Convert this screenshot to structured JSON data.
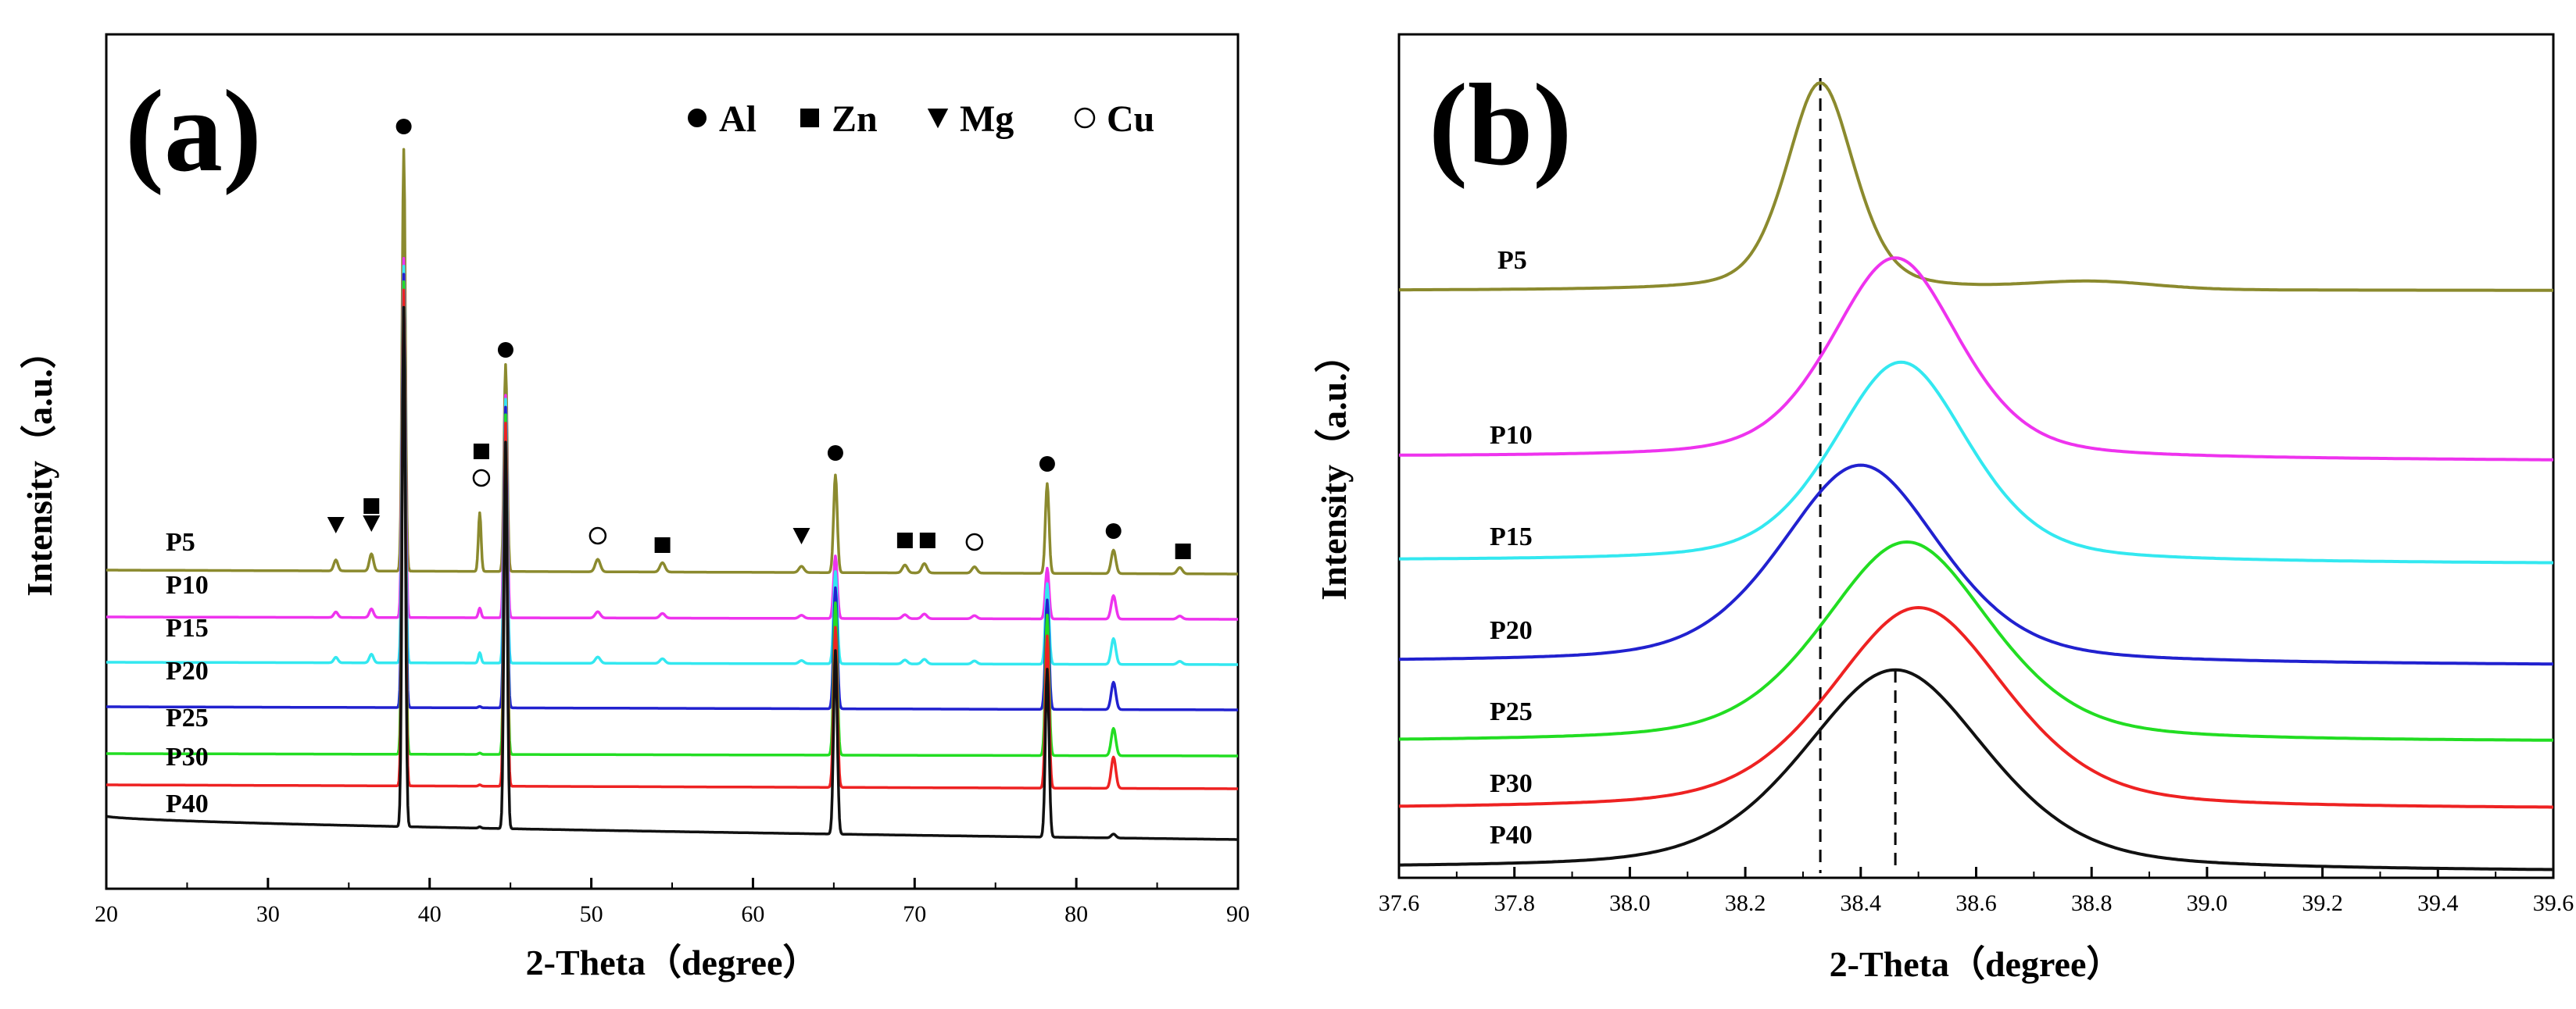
{
  "legend": [
    {
      "marker": "filled-circle",
      "label": "Al"
    },
    {
      "marker": "filled-square",
      "label": "Zn"
    },
    {
      "marker": "filled-triangle-down",
      "label": "Mg"
    },
    {
      "marker": "open-circle",
      "label": "Cu"
    }
  ],
  "chart_data": [
    {
      "type": "line",
      "panel": "(a)",
      "title": "",
      "xlabel": "2-Theta（degree）",
      "ylabel": "Intensity（a.u.）",
      "xlim": [
        20,
        90
      ],
      "xticks": [
        20,
        30,
        40,
        50,
        60,
        70,
        80,
        90
      ],
      "yticks": "none",
      "peak_positions": [
        34.2,
        36.4,
        38.4,
        43.1,
        44.7,
        50.4,
        54.4,
        63.0,
        65.1,
        69.4,
        70.6,
        73.7,
        78.2,
        82.3,
        86.4
      ],
      "series": [
        {
          "name": "P5",
          "color": "#8b8a2e",
          "baseline": 10.0
        },
        {
          "name": "P10",
          "color": "#ee33ee",
          "baseline": 7.5
        },
        {
          "name": "P15",
          "color": "#33e8f0",
          "baseline": 5.4
        },
        {
          "name": "P20",
          "color": "#2121cf",
          "baseline": 3.4
        },
        {
          "name": "P25",
          "color": "#22dd22",
          "baseline": 1.9
        },
        {
          "name": "P30",
          "color": "#ee2222",
          "baseline": 0.9
        },
        {
          "name": "P40",
          "color": "#111111",
          "baseline": 0.0
        }
      ],
      "annotations": [
        {
          "marker": "filled-triangle-down",
          "x": 34.2
        },
        {
          "marker": "filled-triangle-down",
          "x": 36.4
        },
        {
          "marker": "filled-square",
          "x": 36.4
        },
        {
          "marker": "filled-circle",
          "x": 38.4
        },
        {
          "marker": "open-circle",
          "x": 43.2
        },
        {
          "marker": "filled-square",
          "x": 43.2
        },
        {
          "marker": "filled-circle",
          "x": 44.7
        },
        {
          "marker": "open-circle",
          "x": 50.4
        },
        {
          "marker": "filled-square",
          "x": 54.4
        },
        {
          "marker": "filled-triangle-down",
          "x": 63.0
        },
        {
          "marker": "filled-circle",
          "x": 65.1
        },
        {
          "marker": "filled-square",
          "x": 69.4
        },
        {
          "marker": "filled-square",
          "x": 70.8
        },
        {
          "marker": "open-circle",
          "x": 73.7
        },
        {
          "marker": "filled-circle",
          "x": 78.2
        },
        {
          "marker": "filled-circle",
          "x": 82.3
        },
        {
          "marker": "filled-square",
          "x": 86.6
        }
      ]
    },
    {
      "type": "line",
      "panel": "(b)",
      "title": "",
      "xlabel": "2-Theta（degree）",
      "ylabel": "Intensity（a.u.）",
      "xlim": [
        37.6,
        39.6
      ],
      "xticks": [
        37.6,
        37.8,
        38.0,
        38.2,
        38.4,
        38.6,
        38.8,
        39.0,
        39.2,
        39.4,
        39.6
      ],
      "yticks": "none",
      "reference_lines": [
        38.33,
        38.46
      ],
      "series": [
        {
          "name": "P5",
          "color": "#8b8a2e",
          "peak_center": 38.33,
          "baseline": 10.0
        },
        {
          "name": "P10",
          "color": "#ee33ee",
          "peak_center": 38.46,
          "baseline": 7.2
        },
        {
          "name": "P15",
          "color": "#33e8f0",
          "peak_center": 38.47,
          "baseline": 5.5
        },
        {
          "name": "P20",
          "color": "#2121cf",
          "peak_center": 38.4,
          "baseline": 3.8
        },
        {
          "name": "P25",
          "color": "#22dd22",
          "peak_center": 38.48,
          "baseline": 2.6
        },
        {
          "name": "P30",
          "color": "#ee2222",
          "peak_center": 38.5,
          "baseline": 1.5
        },
        {
          "name": "P40",
          "color": "#111111",
          "peak_center": 38.46,
          "baseline": 0.0
        }
      ]
    }
  ]
}
